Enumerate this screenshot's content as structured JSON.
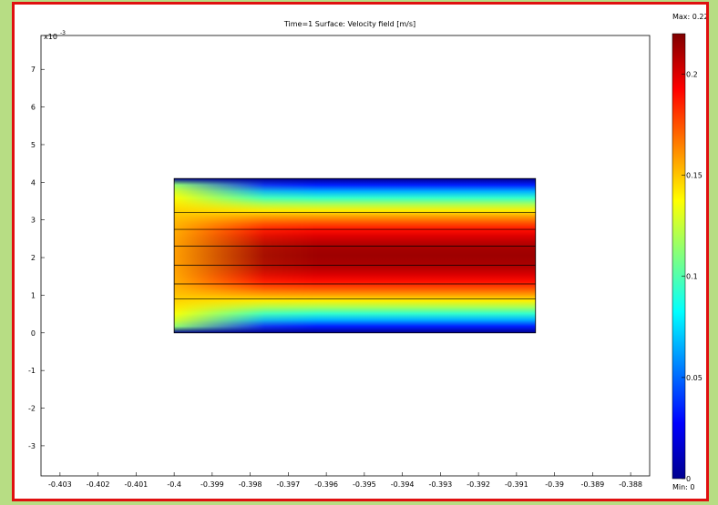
{
  "chart_data": {
    "type": "heatmap",
    "title": "Time=1   Surface: Velocity field [m/s]",
    "xlabel": "",
    "ylabel": "",
    "y_scale_label": "x10",
    "y_scale_exponent": "-3",
    "xlim": [
      -0.4035,
      -0.3875
    ],
    "ylim": [
      -3.8,
      7.9
    ],
    "x_ticks": [
      -0.403,
      -0.402,
      -0.401,
      -0.4,
      -0.399,
      -0.398,
      -0.397,
      -0.396,
      -0.395,
      -0.394,
      -0.393,
      -0.392,
      -0.391,
      -0.39,
      -0.389,
      -0.388
    ],
    "x_tick_labels": [
      "-0.403",
      "-0.402",
      "-0.401",
      "-0.4",
      "-0.399",
      "-0.398",
      "-0.397",
      "-0.396",
      "-0.395",
      "-0.394",
      "-0.393",
      "-0.392",
      "-0.391",
      "-0.39",
      "-0.389",
      "-0.388"
    ],
    "y_ticks": [
      7,
      6,
      5,
      4,
      3,
      2,
      1,
      0,
      -1,
      -2,
      -3
    ],
    "y_tick_labels": [
      "7",
      "6",
      "5",
      "4",
      "3",
      "2",
      "1",
      "0",
      "-1",
      "-2",
      "-3"
    ],
    "domain": {
      "x_range": [
        -0.4,
        -0.3905
      ],
      "y_range": [
        0,
        4.1
      ],
      "streamline_y": [
        0.9,
        1.3,
        1.8,
        2.3,
        2.75,
        3.2
      ]
    },
    "field": {
      "quantity": "Velocity field",
      "unit": "m/s",
      "min": 0,
      "max": 0.22,
      "max_label": "Max: 0.22",
      "min_label": "Min: 0",
      "profile": "parabolic across channel, developing from uniform inlet at x=-0.4"
    },
    "colorbar": {
      "ticks": [
        0.2,
        0.15,
        0.1,
        0.05,
        0
      ],
      "tick_labels": [
        "0.2",
        "0.15",
        "0.1",
        "0.05",
        "0"
      ],
      "colormap": "jet",
      "colors": [
        "#00008f",
        "#0000ff",
        "#0080ff",
        "#00ffff",
        "#80ff80",
        "#ffff00",
        "#ff8000",
        "#ff0000",
        "#800000"
      ]
    }
  }
}
